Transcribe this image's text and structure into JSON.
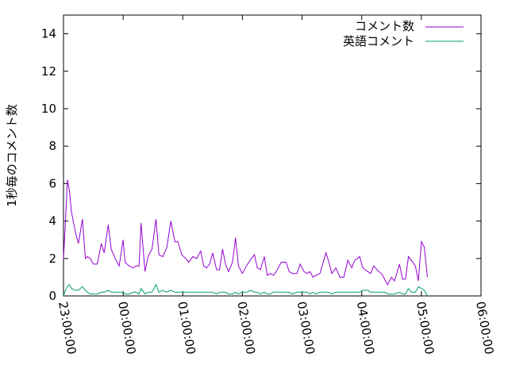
{
  "chart_data": {
    "type": "line",
    "title": "",
    "xlabel": "",
    "ylabel": "1秒毎のコメント数",
    "xlim": [
      "23:00:00",
      "06:00:00"
    ],
    "ylim": [
      0,
      15
    ],
    "x_ticks": [
      "23:00:00",
      "00:00:00",
      "01:00:00",
      "02:00:00",
      "03:00:00",
      "04:00:00",
      "05:00:00",
      "06:00:00"
    ],
    "y_ticks": [
      "0",
      "2",
      "4",
      "6",
      "8",
      "10",
      "12",
      "14"
    ],
    "grid": false,
    "legend_placement": "top-right",
    "x": [
      "23:00",
      "23:02",
      "23:04",
      "23:06",
      "23:08",
      "23:12",
      "23:15",
      "23:19",
      "23:22",
      "23:24",
      "23:27",
      "23:30",
      "23:34",
      "23:38",
      "23:41",
      "23:45",
      "23:48",
      "23:52",
      "23:56",
      "00:00",
      "00:02",
      "00:06",
      "00:10",
      "00:13",
      "00:16",
      "00:18",
      "00:22",
      "00:25",
      "00:29",
      "00:33",
      "00:36",
      "00:40",
      "00:44",
      "00:48",
      "00:52",
      "00:55",
      "00:59",
      "01:03",
      "01:06",
      "01:10",
      "01:14",
      "01:18",
      "01:21",
      "01:24",
      "01:27",
      "01:30",
      "01:34",
      "01:37",
      "01:40",
      "01:43",
      "01:46",
      "01:50",
      "01:53",
      "01:56",
      "02:00",
      "02:04",
      "02:09",
      "02:12",
      "02:15",
      "02:18",
      "02:22",
      "02:25",
      "02:28",
      "02:31",
      "02:34",
      "02:39",
      "02:44",
      "02:47",
      "02:50",
      "02:55",
      "02:58",
      "03:02",
      "03:05",
      "03:08",
      "03:11",
      "03:14",
      "03:18",
      "03:24",
      "03:27",
      "03:30",
      "03:34",
      "03:38",
      "03:42",
      "03:46",
      "03:50",
      "03:53",
      "03:58",
      "04:01",
      "04:06",
      "04:09",
      "04:12",
      "04:17",
      "04:20",
      "04:23",
      "04:26",
      "04:30",
      "04:33",
      "04:38",
      "04:41",
      "04:44",
      "04:47",
      "04:50",
      "04:54",
      "04:57",
      "05:00",
      "05:03",
      "05:06"
    ],
    "series": [
      {
        "name": "コメント数",
        "color": "#9400d3",
        "values": [
          2.0,
          4.0,
          6.2,
          5.6,
          4.5,
          3.4,
          2.8,
          4.1,
          2.0,
          2.1,
          2.0,
          1.7,
          1.7,
          2.8,
          2.3,
          3.8,
          2.5,
          2.0,
          1.6,
          3.0,
          1.8,
          1.6,
          1.5,
          1.6,
          1.6,
          3.9,
          1.3,
          2.1,
          2.5,
          4.1,
          2.2,
          2.1,
          2.6,
          4.0,
          2.9,
          2.9,
          2.2,
          2.0,
          1.8,
          2.1,
          2.0,
          2.4,
          1.6,
          1.5,
          1.7,
          2.3,
          1.4,
          1.4,
          2.5,
          1.7,
          1.3,
          1.8,
          3.1,
          1.6,
          1.2,
          1.6,
          2.0,
          2.2,
          1.5,
          1.4,
          2.1,
          1.1,
          1.2,
          1.1,
          1.3,
          1.8,
          1.8,
          1.3,
          1.2,
          1.2,
          1.7,
          1.3,
          1.2,
          1.3,
          1.0,
          1.1,
          1.2,
          2.3,
          1.8,
          1.2,
          1.5,
          1.0,
          1.0,
          1.9,
          1.5,
          1.9,
          2.1,
          1.5,
          1.3,
          1.2,
          1.6,
          1.3,
          1.2,
          0.9,
          0.6,
          1.0,
          0.8,
          1.7,
          0.9,
          0.9,
          2.1,
          1.9,
          1.6,
          0.8,
          2.9,
          2.6,
          1.0
        ]
      },
      {
        "name": "英語コメント",
        "color": "#009e73",
        "values": [
          0.0,
          0.3,
          0.5,
          0.6,
          0.4,
          0.3,
          0.3,
          0.5,
          0.3,
          0.2,
          0.1,
          0.1,
          0.1,
          0.2,
          0.2,
          0.3,
          0.2,
          0.2,
          0.2,
          0.2,
          0.1,
          0.1,
          0.2,
          0.2,
          0.1,
          0.4,
          0.1,
          0.2,
          0.2,
          0.6,
          0.2,
          0.3,
          0.2,
          0.3,
          0.2,
          0.2,
          0.2,
          0.2,
          0.2,
          0.2,
          0.2,
          0.2,
          0.2,
          0.2,
          0.2,
          0.2,
          0.1,
          0.2,
          0.2,
          0.2,
          0.1,
          0.1,
          0.2,
          0.1,
          0.2,
          0.2,
          0.3,
          0.2,
          0.2,
          0.1,
          0.2,
          0.1,
          0.1,
          0.2,
          0.2,
          0.2,
          0.2,
          0.2,
          0.1,
          0.2,
          0.2,
          0.2,
          0.2,
          0.1,
          0.2,
          0.1,
          0.2,
          0.2,
          0.2,
          0.1,
          0.2,
          0.2,
          0.2,
          0.2,
          0.2,
          0.2,
          0.2,
          0.3,
          0.3,
          0.2,
          0.2,
          0.2,
          0.2,
          0.2,
          0.1,
          0.1,
          0.1,
          0.2,
          0.1,
          0.1,
          0.4,
          0.2,
          0.2,
          0.5,
          0.4,
          0.3,
          0.0
        ]
      }
    ]
  }
}
